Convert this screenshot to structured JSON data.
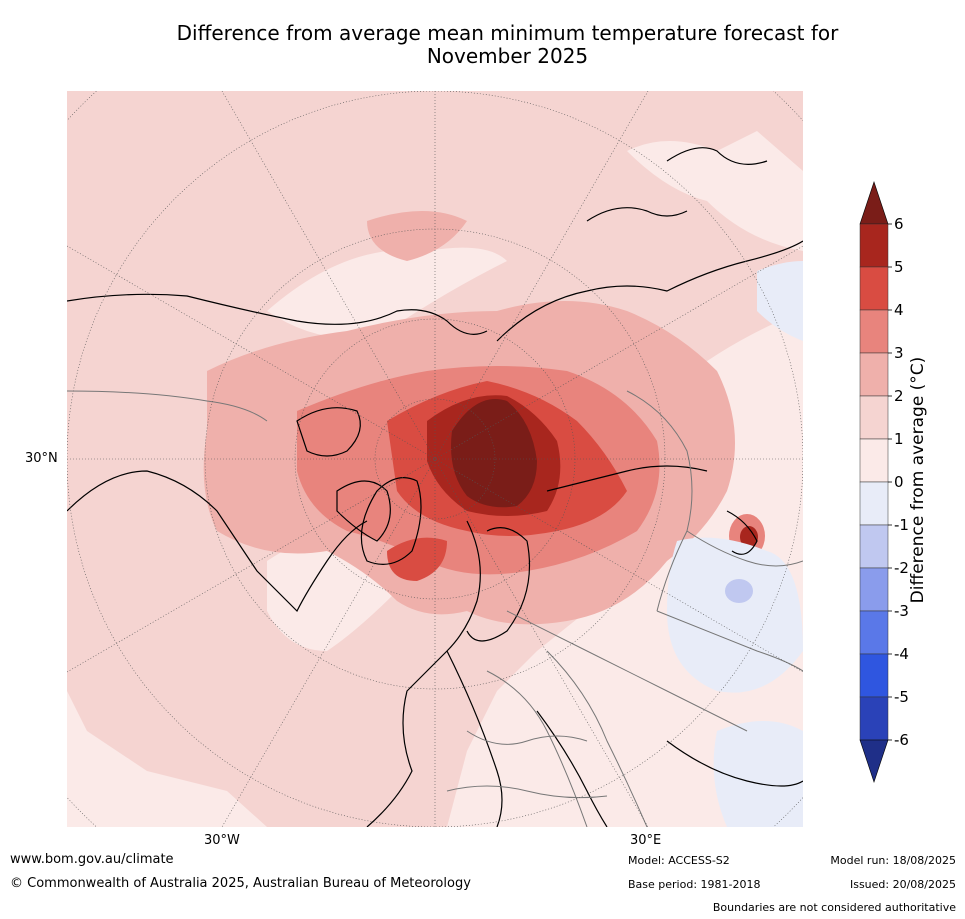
{
  "title_line1": "Difference from average mean minimum temperature forecast for",
  "title_line2": "November 2025",
  "labels": {
    "lat30n": "30°N",
    "lon30w": "30°W",
    "lon30e": "30°E"
  },
  "colorbar": {
    "label": "Difference from average (°C)",
    "ticks": [
      "6",
      "5",
      "4",
      "3",
      "2",
      "1",
      "0",
      "-1",
      "-2",
      "-3",
      "-4",
      "-5",
      "-6"
    ],
    "colors": [
      "#a8261e",
      "#d94c42",
      "#e8847d",
      "#efb0ab",
      "#f5d4d1",
      "#fbeae8",
      "#e8ecf8",
      "#c0c8f0",
      "#8a9cec",
      "#5a78e8",
      "#2f56e0",
      "#2a42b8"
    ],
    "over_color": "#7a1d18",
    "under_color": "#1f2f88"
  },
  "footer": {
    "website": "www.bom.gov.au/climate",
    "copyright": "© Commonwealth of Australia 2025, Australian Bureau of Meteorology",
    "model": "Model: ACCESS-S2",
    "base_period": "Base period: 1981-2018",
    "model_run": "Model run: 18/08/2025",
    "issued": "Issued: 20/08/2025",
    "disclaimer": "Boundaries are not considered authoritative"
  }
}
